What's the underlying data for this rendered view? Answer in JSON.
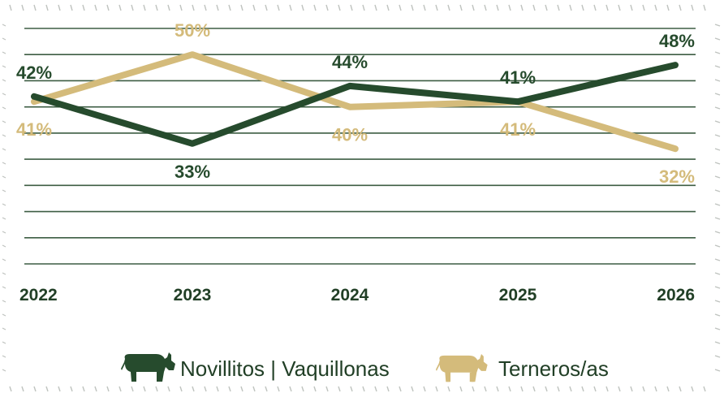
{
  "colors": {
    "dark": "#264b2d",
    "gold": "#d4bb7b",
    "grid": "#3d5d43",
    "text_dark": "#213f26",
    "border": "#bfc3bf"
  },
  "chart_data": {
    "type": "line",
    "x": [
      "2022",
      "2023",
      "2024",
      "2025",
      "2026"
    ],
    "ylim": [
      10,
      55
    ],
    "grid": "horizontal",
    "legend_position": "bottom",
    "series": [
      {
        "name": "Novillitos | Vaquillonas",
        "color": "#264b2d",
        "values": [
          42,
          33,
          44,
          41,
          48
        ],
        "labels": [
          "42%",
          "33%",
          "44%",
          "41%",
          "48%"
        ],
        "icon": "cow-icon"
      },
      {
        "name": "Terneros/as",
        "color": "#d4bb7b",
        "values": [
          41,
          50,
          40,
          41,
          32
        ],
        "labels": [
          "41%",
          "50%",
          "40%",
          "41%",
          "32%"
        ],
        "icon": "calf-icon"
      }
    ]
  }
}
